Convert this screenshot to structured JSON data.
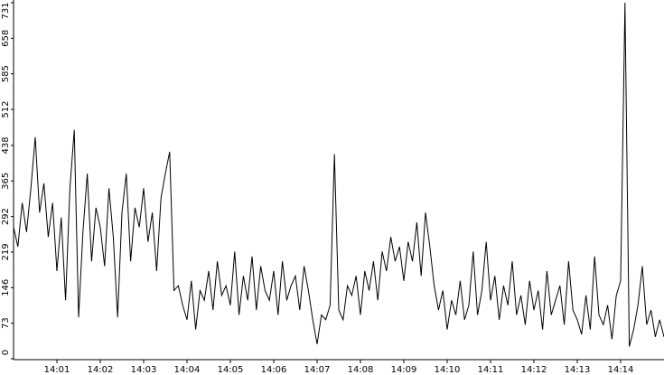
{
  "chart_data": {
    "type": "line",
    "x": [
      0,
      0.1,
      0.2,
      0.3,
      0.4,
      0.5,
      0.6,
      0.7,
      0.8,
      0.9,
      1,
      1.1,
      1.2,
      1.3,
      1.4,
      1.5,
      1.6,
      1.7,
      1.8,
      1.9,
      2,
      2.1,
      2.2,
      2.3,
      2.4,
      2.5,
      2.6,
      2.7,
      2.8,
      2.9,
      3,
      3.1,
      3.2,
      3.3,
      3.4,
      3.5,
      3.6,
      3.7,
      3.8,
      3.9,
      4,
      4.1,
      4.2,
      4.3,
      4.4,
      4.5,
      4.6,
      4.7,
      4.8,
      4.9,
      5,
      5.1,
      5.2,
      5.3,
      5.4,
      5.5,
      5.6,
      5.7,
      5.8,
      5.9,
      6,
      6.1,
      6.2,
      6.3,
      6.4,
      6.5,
      6.6,
      6.7,
      6.8,
      6.9,
      7,
      7.1,
      7.2,
      7.3,
      7.4,
      7.5,
      7.6,
      7.7,
      7.8,
      7.9,
      8,
      8.1,
      8.2,
      8.3,
      8.4,
      8.5,
      8.6,
      8.7,
      8.8,
      8.9,
      9,
      9.1,
      9.2,
      9.3,
      9.4,
      9.5,
      9.6,
      9.7,
      9.8,
      9.9,
      10,
      10.1,
      10.2,
      10.3,
      10.4,
      10.5,
      10.6,
      10.7,
      10.8,
      10.9,
      11,
      11.1,
      11.2,
      11.3,
      11.4,
      11.5,
      11.6,
      11.7,
      11.8,
      11.9,
      12,
      12.1,
      12.2,
      12.3,
      12.4,
      12.5,
      12.6,
      12.7,
      12.8,
      12.9,
      13,
      13.1,
      13.2,
      13.3,
      13.4,
      13.5,
      13.6,
      13.7,
      13.8,
      13.9,
      14,
      14.1,
      14.2,
      14.3,
      14.4,
      14.5,
      14.6,
      14.7,
      14.8,
      14.9,
      15
    ],
    "series": [
      {
        "color": "#000000",
        "values": [
          270,
          230,
          320,
          260,
          350,
          455,
          300,
          360,
          250,
          320,
          180,
          290,
          120,
          350,
          470,
          85,
          260,
          380,
          200,
          310,
          270,
          190,
          350,
          250,
          85,
          300,
          380,
          200,
          310,
          270,
          350,
          240,
          300,
          180,
          330,
          380,
          425,
          140,
          150,
          110,
          80,
          160,
          60,
          140,
          120,
          180,
          100,
          200,
          130,
          150,
          110,
          220,
          90,
          170,
          120,
          210,
          100,
          190,
          140,
          120,
          180,
          90,
          200,
          120,
          150,
          170,
          100,
          190,
          140,
          80,
          30,
          90,
          80,
          110,
          420,
          100,
          80,
          150,
          130,
          170,
          90,
          180,
          140,
          200,
          120,
          220,
          180,
          250,
          200,
          230,
          160,
          240,
          200,
          280,
          170,
          300,
          230,
          150,
          100,
          140,
          60,
          120,
          90,
          160,
          80,
          110,
          220,
          90,
          140,
          240,
          120,
          170,
          80,
          150,
          110,
          200,
          90,
          130,
          70,
          160,
          100,
          140,
          60,
          180,
          90,
          120,
          150,
          70,
          200,
          100,
          80,
          50,
          130,
          60,
          210,
          90,
          70,
          110,
          40,
          130,
          160,
          731,
          25,
          60,
          110,
          190,
          70,
          100,
          45,
          80,
          45
        ]
      }
    ],
    "xlim": [
      0,
      15
    ],
    "xticks": [
      {
        "value": 1,
        "label": "14:01"
      },
      {
        "value": 2,
        "label": "14:02"
      },
      {
        "value": 3,
        "label": "14:03"
      },
      {
        "value": 4,
        "label": "14:04"
      },
      {
        "value": 5,
        "label": "14:05"
      },
      {
        "value": 6,
        "label": "14:06"
      },
      {
        "value": 7,
        "label": "14:07"
      },
      {
        "value": 8,
        "label": "14:08"
      },
      {
        "value": 9,
        "label": "14:09"
      },
      {
        "value": 10,
        "label": "14:10"
      },
      {
        "value": 11,
        "label": "14:11"
      },
      {
        "value": 12,
        "label": "14:12"
      },
      {
        "value": 13,
        "label": "14:13"
      },
      {
        "value": 14,
        "label": "14:14"
      }
    ],
    "ylim": [
      0,
      731
    ],
    "yticks": [
      0,
      73,
      146,
      219,
      292,
      365,
      438,
      512,
      585,
      658,
      731
    ]
  }
}
